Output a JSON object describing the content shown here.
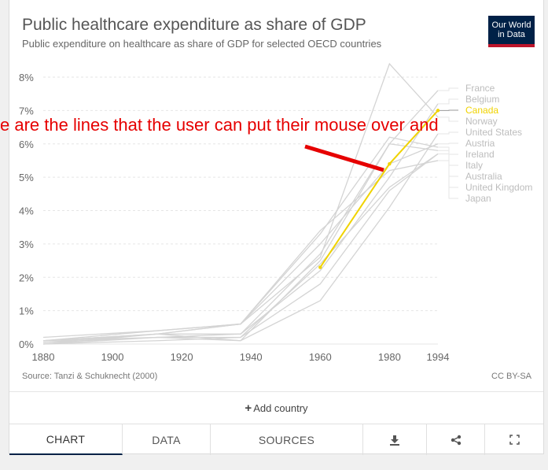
{
  "header": {
    "title": "Public healthcare expenditure as share of GDP",
    "subtitle": "Public expenditure on healthcare as share of GDP for selected OECD countries",
    "logo_line1": "Our World",
    "logo_line2": "in Data"
  },
  "footer": {
    "source": "Source: Tanzi & Schuknecht (2000)",
    "license": "CC BY-SA",
    "add_country": "Add country"
  },
  "tabs": {
    "chart": "CHART",
    "data": "DATA",
    "sources": "SOURCES",
    "download_icon": "download-icon",
    "share_icon": "share-icon",
    "fullscreen_icon": "fullscreen-icon"
  },
  "annotation": {
    "text": "e are the lines that the user can put their mouse over and",
    "color": "#e60000"
  },
  "colors": {
    "highlight": "#f0d300",
    "muted_line": "#d4d4d4",
    "muted_label": "#bdbdbd",
    "grid": "#e5e5e5",
    "logo_bg": "#002147",
    "logo_accent": "#be152b"
  },
  "chart_data": {
    "type": "line",
    "title": "Public healthcare expenditure as share of GDP",
    "subtitle": "Public expenditure on healthcare as share of GDP for selected OECD countries",
    "xlabel": "",
    "ylabel": "",
    "x_ticks": [
      1880,
      1900,
      1920,
      1940,
      1960,
      1980,
      1994
    ],
    "y_ticks": [
      "0%",
      "1%",
      "2%",
      "3%",
      "4%",
      "5%",
      "6%",
      "7%",
      "8%"
    ],
    "ylim": [
      0,
      8
    ],
    "xlim": [
      1880,
      1994
    ],
    "grid": "horizontal",
    "legend": "right-side labels",
    "highlighted_series": "Canada",
    "series": [
      {
        "name": "France",
        "points": [
          [
            1880,
            0.05
          ],
          [
            1913,
            0.3
          ],
          [
            1937,
            0.1
          ],
          [
            1960,
            2.5
          ],
          [
            1980,
            6.0
          ],
          [
            1994,
            7.6
          ]
        ]
      },
      {
        "name": "Belgium",
        "points": [
          [
            1880,
            0.1
          ],
          [
            1913,
            0.3
          ],
          [
            1937,
            0.3
          ],
          [
            1960,
            2.2
          ],
          [
            1980,
            5.0
          ],
          [
            1994,
            7.2
          ]
        ]
      },
      {
        "name": "Canada",
        "points": [
          [
            1960,
            2.3
          ],
          [
            1980,
            5.4
          ],
          [
            1994,
            7.0
          ]
        ]
      },
      {
        "name": "Norway",
        "points": [
          [
            1880,
            0.1
          ],
          [
            1913,
            0.4
          ],
          [
            1937,
            0.6
          ],
          [
            1960,
            2.6
          ],
          [
            1980,
            8.4
          ],
          [
            1994,
            6.8
          ]
        ]
      },
      {
        "name": "United States",
        "points": [
          [
            1880,
            0.0
          ],
          [
            1913,
            0.2
          ],
          [
            1937,
            0.1
          ],
          [
            1960,
            1.3
          ],
          [
            1980,
            4.1
          ],
          [
            1994,
            6.3
          ]
        ]
      },
      {
        "name": "Austria",
        "points": [
          [
            1880,
            0.0
          ],
          [
            1913,
            0.3
          ],
          [
            1937,
            0.6
          ],
          [
            1960,
            3.0
          ],
          [
            1980,
            5.4
          ],
          [
            1994,
            6.0
          ]
        ]
      },
      {
        "name": "Ireland",
        "points": [
          [
            1880,
            0.1
          ],
          [
            1913,
            0.3
          ],
          [
            1937,
            0.6
          ],
          [
            1960,
            3.3
          ],
          [
            1980,
            6.2
          ],
          [
            1994,
            5.9
          ]
        ]
      },
      {
        "name": "Italy",
        "points": [
          [
            1880,
            0.05
          ],
          [
            1913,
            0.2
          ],
          [
            1937,
            0.3
          ],
          [
            1960,
            2.7
          ],
          [
            1980,
            6.0
          ],
          [
            1994,
            5.8
          ]
        ]
      },
      {
        "name": "Australia",
        "points": [
          [
            1880,
            0.1
          ],
          [
            1913,
            0.2
          ],
          [
            1937,
            0.2
          ],
          [
            1960,
            2.4
          ],
          [
            1980,
            4.7
          ],
          [
            1994,
            5.7
          ]
        ]
      },
      {
        "name": "United Kingdom",
        "points": [
          [
            1880,
            0.2
          ],
          [
            1913,
            0.4
          ],
          [
            1937,
            0.6
          ],
          [
            1960,
            3.4
          ],
          [
            1980,
            5.2
          ],
          [
            1994,
            5.5
          ]
        ]
      },
      {
        "name": "Japan",
        "points": [
          [
            1880,
            0.0
          ],
          [
            1913,
            0.1
          ],
          [
            1937,
            0.2
          ],
          [
            1960,
            1.8
          ],
          [
            1980,
            4.6
          ],
          [
            1994,
            5.7
          ]
        ]
      }
    ]
  }
}
